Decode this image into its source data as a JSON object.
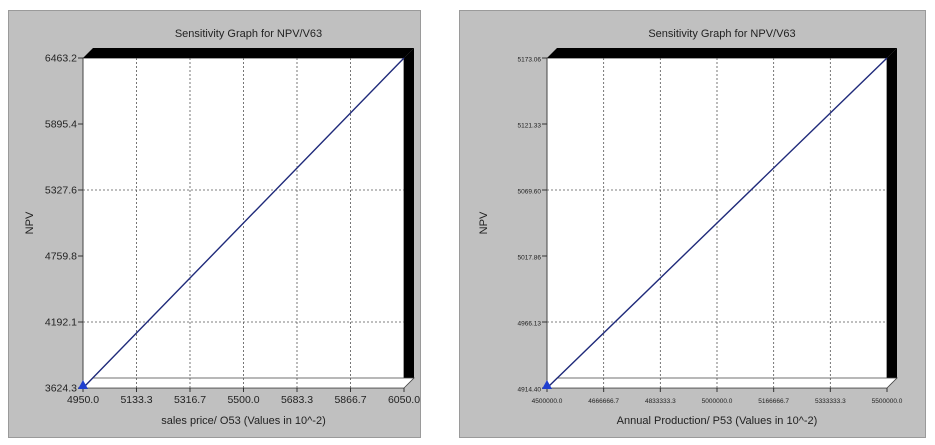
{
  "chart_data": [
    {
      "type": "line",
      "title": "Sensitivity Graph for NPV/V63",
      "xlabel": "sales price/ O53 (Values in 10^-2)",
      "ylabel": "NPV",
      "x_ticks": [
        "4950.0",
        "5133.3",
        "5316.7",
        "5500.0",
        "5683.3",
        "5866.7",
        "6050.0"
      ],
      "y_ticks": [
        "3624.3",
        "4192.1",
        "4759.8",
        "5327.6",
        "5895.4",
        "6463.2"
      ],
      "xlim": [
        4950.0,
        6050.0
      ],
      "ylim": [
        3624.3,
        6463.2
      ],
      "series": [
        {
          "x": [
            4950.0,
            6050.0
          ],
          "y": [
            3624.3,
            6463.2
          ]
        }
      ],
      "grid": true,
      "line_color": "#1f2a7a",
      "marker_color": "#1f3fcf"
    },
    {
      "type": "line",
      "title": "Sensitivity Graph for NPV/V63",
      "xlabel": "Annual Production/ P53 (Values in 10^-2)",
      "ylabel": "NPV",
      "x_ticks": [
        "4500000.0",
        "4666666.7",
        "4833333.3",
        "5000000.0",
        "5166666.7",
        "5333333.3",
        "5500000.0"
      ],
      "y_ticks": [
        "4914.40",
        "4966.13",
        "5017.86",
        "5069.60",
        "5121.33",
        "5173.06"
      ],
      "xlim": [
        4500000.0,
        5500000.0
      ],
      "ylim": [
        4914.4,
        5173.06
      ],
      "series": [
        {
          "x": [
            4500000.0,
            5500000.0
          ],
          "y": [
            4914.4,
            5173.06
          ]
        }
      ],
      "grid": true,
      "line_color": "#1f2a7a",
      "marker_color": "#1f3fcf"
    }
  ]
}
